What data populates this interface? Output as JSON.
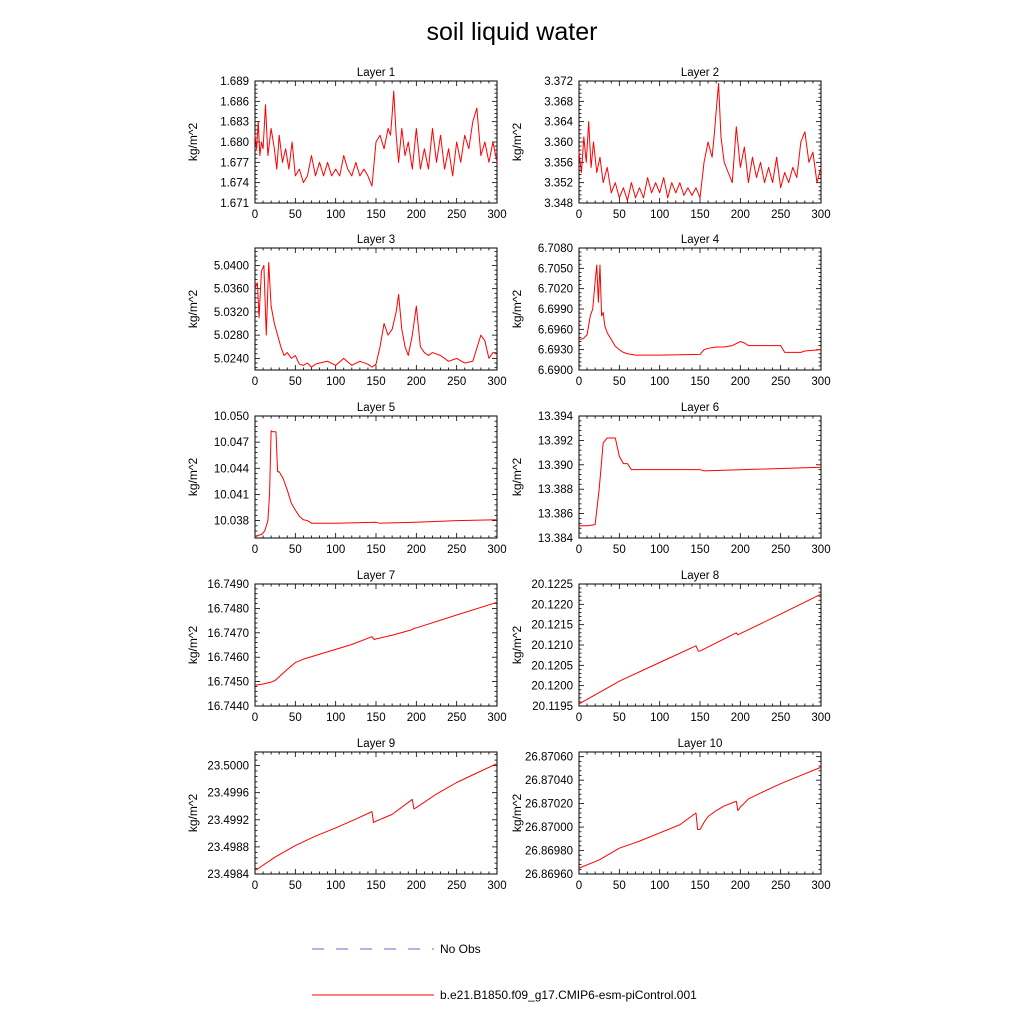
{
  "figure": {
    "title": "soil liquid water",
    "legend": [
      {
        "label": "No Obs",
        "color": "#6a6ad0",
        "dash": "dashed"
      },
      {
        "label": "b.e21.B1850.f09_g17.CMIP6-esm-piControl.001",
        "color": "#ff0000",
        "dash": "solid"
      }
    ]
  },
  "chart_data": [
    {
      "type": "line",
      "title": "Layer 1",
      "ylabel": "kg/m^2",
      "xlim": [
        0,
        300
      ],
      "xticks": [
        "0",
        "50",
        "100",
        "150",
        "200",
        "250",
        "300"
      ],
      "ylim": [
        1.671,
        1.689
      ],
      "yticks": [
        "1.671",
        "1.674",
        "1.677",
        "1.680",
        "1.683",
        "1.686",
        "1.689"
      ],
      "series": [
        {
          "name": "b.e21.B1850.f09_g17.CMIP6-esm-piControl.001",
          "color": "#ff0000",
          "x": [
            0,
            2,
            4,
            6,
            8,
            10,
            13,
            16,
            20,
            24,
            27,
            30,
            34,
            38,
            42,
            46,
            50,
            55,
            60,
            65,
            70,
            75,
            80,
            85,
            90,
            95,
            100,
            105,
            110,
            115,
            120,
            125,
            130,
            135,
            140,
            145,
            150,
            155,
            160,
            165,
            168,
            170,
            172,
            175,
            178,
            182,
            186,
            190,
            195,
            200,
            205,
            210,
            215,
            220,
            225,
            230,
            235,
            240,
            245,
            250,
            255,
            260,
            265,
            270,
            275,
            280,
            285,
            290,
            295,
            300
          ],
          "y": [
            1.681,
            1.679,
            1.683,
            1.678,
            1.68,
            1.679,
            1.6855,
            1.678,
            1.682,
            1.679,
            1.676,
            1.681,
            1.677,
            1.679,
            1.676,
            1.68,
            1.675,
            1.676,
            1.674,
            1.675,
            1.678,
            1.675,
            1.677,
            1.675,
            1.677,
            1.675,
            1.676,
            1.675,
            1.678,
            1.676,
            1.675,
            1.677,
            1.675,
            1.676,
            1.675,
            1.6735,
            1.68,
            1.681,
            1.679,
            1.682,
            1.681,
            1.684,
            1.6875,
            1.681,
            1.677,
            1.682,
            1.678,
            1.68,
            1.676,
            1.682,
            1.676,
            1.679,
            1.676,
            1.682,
            1.677,
            1.681,
            1.676,
            1.679,
            1.675,
            1.68,
            1.677,
            1.681,
            1.679,
            1.683,
            1.685,
            1.678,
            1.68,
            1.677,
            1.68,
            1.677
          ]
        }
      ]
    },
    {
      "type": "line",
      "title": "Layer 2",
      "ylabel": "kg/m^2",
      "xlim": [
        0,
        300
      ],
      "xticks": [
        "0",
        "50",
        "100",
        "150",
        "200",
        "250",
        "300"
      ],
      "ylim": [
        3.348,
        3.372
      ],
      "yticks": [
        "3.348",
        "3.352",
        "3.356",
        "3.360",
        "3.364",
        "3.368",
        "3.372"
      ],
      "series": [
        {
          "name": "b.e21.B1850.f09_g17.CMIP6-esm-piControl.001",
          "color": "#ff0000",
          "x": [
            0,
            3,
            6,
            9,
            12,
            15,
            18,
            22,
            26,
            30,
            35,
            40,
            45,
            50,
            55,
            60,
            65,
            70,
            75,
            80,
            85,
            90,
            95,
            100,
            105,
            110,
            115,
            120,
            125,
            130,
            135,
            140,
            145,
            150,
            155,
            160,
            165,
            168,
            170,
            173,
            176,
            180,
            185,
            190,
            195,
            200,
            205,
            210,
            215,
            220,
            225,
            230,
            235,
            240,
            245,
            250,
            255,
            260,
            265,
            270,
            275,
            280,
            285,
            290,
            295,
            300
          ],
          "y": [
            3.358,
            3.354,
            3.361,
            3.356,
            3.364,
            3.355,
            3.36,
            3.354,
            3.357,
            3.352,
            3.355,
            3.35,
            3.352,
            3.349,
            3.351,
            3.3485,
            3.352,
            3.349,
            3.351,
            3.349,
            3.353,
            3.35,
            3.352,
            3.35,
            3.353,
            3.349,
            3.352,
            3.35,
            3.352,
            3.3495,
            3.351,
            3.3495,
            3.351,
            3.349,
            3.356,
            3.36,
            3.357,
            3.362,
            3.366,
            3.3715,
            3.361,
            3.356,
            3.354,
            3.352,
            3.363,
            3.355,
            3.359,
            3.352,
            3.357,
            3.353,
            3.356,
            3.352,
            3.355,
            3.352,
            3.357,
            3.351,
            3.354,
            3.352,
            3.355,
            3.353,
            3.36,
            3.362,
            3.356,
            3.358,
            3.352,
            3.355
          ]
        }
      ]
    },
    {
      "type": "line",
      "title": "Layer 3",
      "ylabel": "kg/m^2",
      "xlim": [
        0,
        300
      ],
      "xticks": [
        "0",
        "50",
        "100",
        "150",
        "200",
        "250",
        "300"
      ],
      "ylim": [
        5.022,
        5.043
      ],
      "yticks": [
        "5.0240",
        "5.0280",
        "5.0320",
        "5.0360",
        "5.0400"
      ],
      "series": [
        {
          "name": "b.e21.B1850.f09_g17.CMIP6-esm-piControl.001",
          "color": "#ff0000",
          "x": [
            0,
            3,
            5,
            8,
            11,
            14,
            17,
            20,
            24,
            28,
            32,
            36,
            40,
            45,
            50,
            55,
            60,
            65,
            70,
            75,
            80,
            90,
            100,
            110,
            120,
            130,
            140,
            145,
            150,
            155,
            160,
            165,
            170,
            175,
            178,
            182,
            186,
            190,
            195,
            200,
            205,
            210,
            215,
            220,
            230,
            240,
            250,
            260,
            270,
            280,
            285,
            290,
            295,
            300
          ],
          "y": [
            5.036,
            5.037,
            5.031,
            5.039,
            5.04,
            5.028,
            5.0405,
            5.033,
            5.03,
            5.028,
            5.026,
            5.0245,
            5.025,
            5.024,
            5.0245,
            5.023,
            5.0228,
            5.0232,
            5.0225,
            5.023,
            5.0232,
            5.0235,
            5.0228,
            5.024,
            5.0228,
            5.0235,
            5.023,
            5.0225,
            5.023,
            5.026,
            5.03,
            5.028,
            5.029,
            5.032,
            5.035,
            5.029,
            5.026,
            5.0245,
            5.028,
            5.033,
            5.026,
            5.025,
            5.0245,
            5.025,
            5.0245,
            5.0235,
            5.024,
            5.0232,
            5.0235,
            5.028,
            5.027,
            5.024,
            5.025,
            5.025
          ]
        }
      ]
    },
    {
      "type": "line",
      "title": "Layer 4",
      "ylabel": "kg/m^2",
      "xlim": [
        0,
        300
      ],
      "xticks": [
        "0",
        "50",
        "100",
        "150",
        "200",
        "250",
        "300"
      ],
      "ylim": [
        6.69,
        6.708
      ],
      "yticks": [
        "6.6900",
        "6.6930",
        "6.6960",
        "6.6990",
        "6.7020",
        "6.7050",
        "6.7080"
      ],
      "series": [
        {
          "name": "b.e21.B1850.f09_g17.CMIP6-esm-piControl.001",
          "color": "#ff0000",
          "x": [
            0,
            5,
            10,
            14,
            17,
            20,
            22,
            24,
            26,
            28,
            30,
            32,
            35,
            40,
            45,
            50,
            55,
            60,
            65,
            70,
            100,
            150,
            155,
            160,
            170,
            180,
            190,
            200,
            205,
            210,
            215,
            250,
            255,
            275,
            280,
            300
          ],
          "y": [
            6.6945,
            6.6946,
            6.6952,
            6.698,
            6.699,
            6.703,
            6.7055,
            6.7,
            6.7055,
            6.698,
            6.6985,
            6.6965,
            6.6955,
            6.6945,
            6.6935,
            6.693,
            6.6926,
            6.6924,
            6.6923,
            6.6922,
            6.6922,
            6.6923,
            6.693,
            6.6932,
            6.6934,
            6.6934,
            6.6936,
            6.6942,
            6.694,
            6.6936,
            6.6936,
            6.6936,
            6.6926,
            6.6926,
            6.6928,
            6.693
          ]
        }
      ]
    },
    {
      "type": "line",
      "title": "Layer 5",
      "ylabel": "kg/m^2",
      "xlim": [
        0,
        300
      ],
      "xticks": [
        "0",
        "50",
        "100",
        "150",
        "200",
        "250",
        "300"
      ],
      "ylim": [
        10.036,
        10.05
      ],
      "yticks": [
        "10.038",
        "10.041",
        "10.044",
        "10.047",
        "10.050"
      ],
      "series": [
        {
          "name": "b.e21.B1850.f09_g17.CMIP6-esm-piControl.001",
          "color": "#ff0000",
          "x": [
            0,
            8,
            12,
            16,
            18,
            20,
            22,
            26,
            28,
            30,
            35,
            40,
            45,
            50,
            55,
            60,
            65,
            70,
            100,
            150,
            155,
            200,
            250,
            300
          ],
          "y": [
            10.0362,
            10.0364,
            10.0368,
            10.038,
            10.041,
            10.0483,
            10.0482,
            10.0482,
            10.0436,
            10.0436,
            10.0428,
            10.0415,
            10.04,
            10.0392,
            10.0385,
            10.0381,
            10.038,
            10.0377,
            10.0377,
            10.0378,
            10.0377,
            10.0378,
            10.038,
            10.0381
          ]
        }
      ]
    },
    {
      "type": "line",
      "title": "Layer 6",
      "ylabel": "kg/m^2",
      "xlim": [
        0,
        300
      ],
      "xticks": [
        "0",
        "50",
        "100",
        "150",
        "200",
        "250",
        "300"
      ],
      "ylim": [
        13.384,
        13.394
      ],
      "yticks": [
        "13.384",
        "13.386",
        "13.388",
        "13.390",
        "13.392",
        "13.394"
      ],
      "series": [
        {
          "name": "b.e21.B1850.f09_g17.CMIP6-esm-piControl.001",
          "color": "#ff0000",
          "x": [
            0,
            10,
            20,
            25,
            30,
            35,
            40,
            45,
            50,
            55,
            60,
            65,
            70,
            150,
            155,
            300
          ],
          "y": [
            13.385,
            13.385,
            13.3851,
            13.388,
            13.3918,
            13.3922,
            13.3922,
            13.3922,
            13.3907,
            13.3901,
            13.3901,
            13.3896,
            13.3896,
            13.3896,
            13.3895,
            13.3898
          ]
        }
      ]
    },
    {
      "type": "line",
      "title": "Layer 7",
      "ylabel": "kg/m^2",
      "xlim": [
        0,
        300
      ],
      "xticks": [
        "0",
        "50",
        "100",
        "150",
        "200",
        "250",
        "300"
      ],
      "ylim": [
        16.744,
        16.749
      ],
      "yticks": [
        "16.7440",
        "16.7450",
        "16.7460",
        "16.7470",
        "16.7480",
        "16.7490"
      ],
      "series": [
        {
          "name": "b.e21.B1850.f09_g17.CMIP6-esm-piControl.001",
          "color": "#ff0000",
          "x": [
            0,
            10,
            20,
            25,
            30,
            40,
            50,
            60,
            80,
            100,
            120,
            145,
            148,
            150,
            170,
            195,
            197,
            200,
            250,
            300
          ],
          "y": [
            16.74485,
            16.7449,
            16.74498,
            16.74505,
            16.7452,
            16.7455,
            16.74578,
            16.74592,
            16.74612,
            16.74632,
            16.74652,
            16.74684,
            16.74672,
            16.74675,
            16.7469,
            16.74713,
            16.74718,
            16.7472,
            16.74773,
            16.74825
          ]
        }
      ]
    },
    {
      "type": "line",
      "title": "Layer 8",
      "ylabel": "kg/m^2",
      "xlim": [
        0,
        300
      ],
      "xticks": [
        "0",
        "50",
        "100",
        "150",
        "200",
        "250",
        "300"
      ],
      "ylim": [
        20.1195,
        20.1225
      ],
      "yticks": [
        "20.1195",
        "20.1200",
        "20.1205",
        "20.1210",
        "20.1215",
        "20.1220",
        "20.1225"
      ],
      "series": [
        {
          "name": "b.e21.B1850.f09_g17.CMIP6-esm-piControl.001",
          "color": "#ff0000",
          "x": [
            0,
            50,
            100,
            145,
            148,
            150,
            195,
            197,
            200,
            250,
            300
          ],
          "y": [
            20.11955,
            20.12011,
            20.12057,
            20.12098,
            20.12085,
            20.12085,
            20.1213,
            20.12125,
            20.12128,
            20.12176,
            20.12225
          ]
        }
      ]
    },
    {
      "type": "line",
      "title": "Layer 9",
      "ylabel": "kg/m^2",
      "xlim": [
        0,
        300
      ],
      "xticks": [
        "0",
        "50",
        "100",
        "150",
        "200",
        "250",
        "300"
      ],
      "ylim": [
        23.4984,
        23.5002
      ],
      "yticks": [
        "23.4984",
        "23.4988",
        "23.4992",
        "23.4996",
        "23.5000"
      ],
      "series": [
        {
          "name": "b.e21.B1850.f09_g17.CMIP6-esm-piControl.001",
          "color": "#ff0000",
          "x": [
            0,
            25,
            50,
            75,
            100,
            125,
            145,
            147,
            150,
            170,
            195,
            197,
            200,
            225,
            250,
            275,
            300
          ],
          "y": [
            23.49845,
            23.49865,
            23.49882,
            23.49896,
            23.49908,
            23.49921,
            23.49932,
            23.49916,
            23.49918,
            23.49928,
            23.4995,
            23.49936,
            23.49938,
            23.49958,
            23.49975,
            23.49989,
            23.50003
          ]
        }
      ]
    },
    {
      "type": "line",
      "title": "Layer 10",
      "ylabel": "kg/m^2",
      "xlim": [
        0,
        300
      ],
      "xticks": [
        "0",
        "50",
        "100",
        "150",
        "200",
        "250",
        "300"
      ],
      "ylim": [
        26.8696,
        26.87064
      ],
      "yticks": [
        "26.86960",
        "26.86980",
        "26.87000",
        "26.87020",
        "26.87040",
        "26.87060"
      ],
      "series": [
        {
          "name": "b.e21.B1850.f09_g17.CMIP6-esm-piControl.001",
          "color": "#ff0000",
          "x": [
            0,
            25,
            50,
            75,
            100,
            125,
            145,
            147,
            150,
            155,
            160,
            170,
            180,
            195,
            197,
            200,
            210,
            225,
            250,
            275,
            300
          ],
          "y": [
            26.86965,
            26.86972,
            26.86982,
            26.86988,
            26.86995,
            26.87002,
            26.87012,
            26.86998,
            26.86998,
            26.87004,
            26.87009,
            26.87014,
            26.87018,
            26.87022,
            26.87014,
            26.87017,
            26.87024,
            26.87029,
            26.87037,
            26.87044,
            26.87051
          ]
        }
      ]
    }
  ]
}
